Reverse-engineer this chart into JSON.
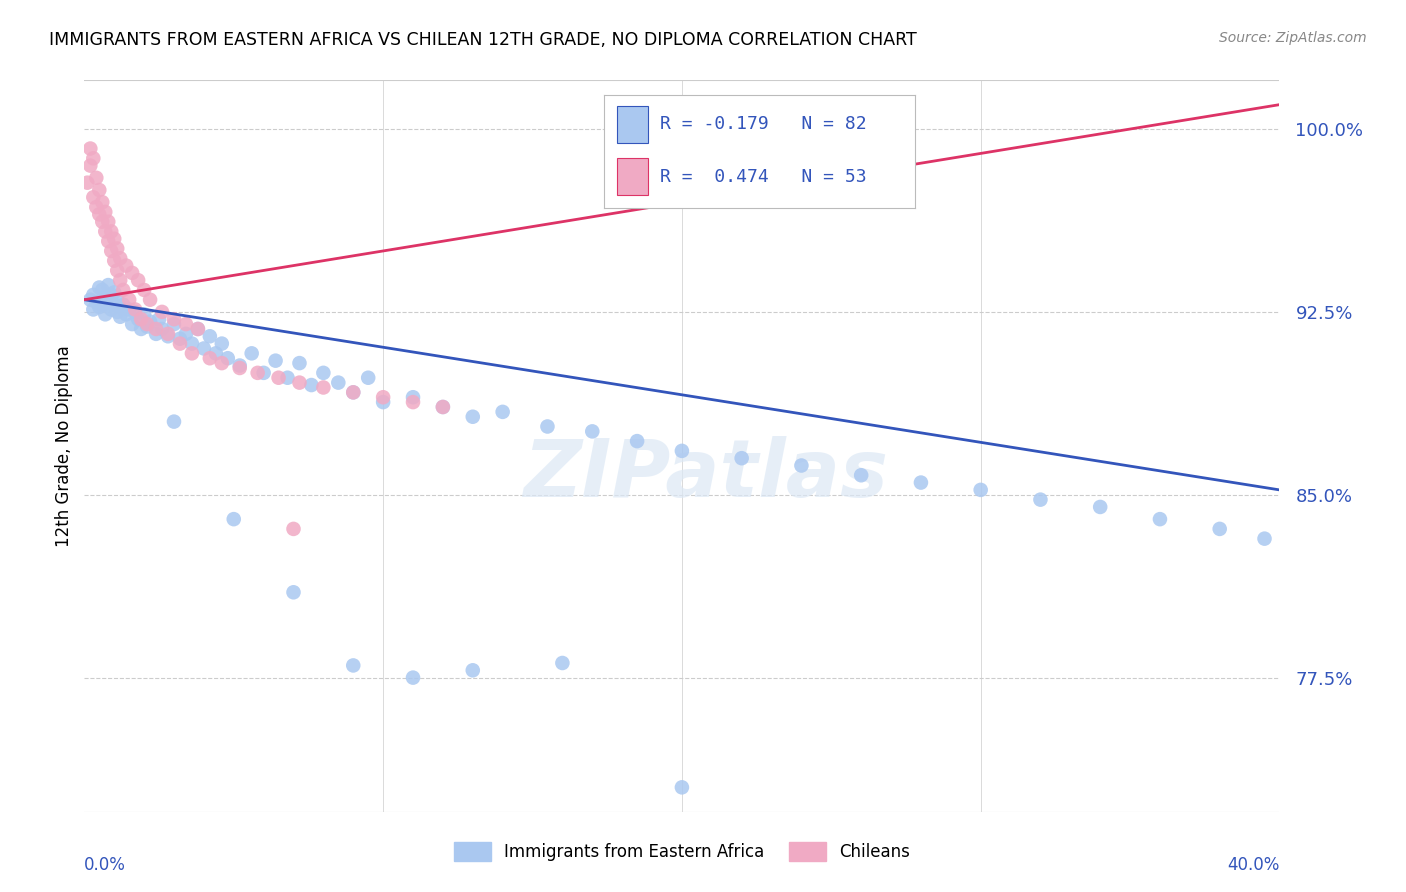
{
  "title": "IMMIGRANTS FROM EASTERN AFRICA VS CHILEAN 12TH GRADE, NO DIPLOMA CORRELATION CHART",
  "source": "Source: ZipAtlas.com",
  "ylabel": "12th Grade, No Diploma",
  "legend_blue": "Immigrants from Eastern Africa",
  "legend_pink": "Chileans",
  "R_blue": -0.179,
  "N_blue": 82,
  "R_pink": 0.474,
  "N_pink": 53,
  "watermark": "ZIPatlas",
  "blue_color": "#aac8f0",
  "pink_color": "#f0aac4",
  "blue_line_color": "#3355bb",
  "pink_line_color": "#dd3366",
  "xlim": [
    0.0,
    0.4
  ],
  "ylim": [
    0.72,
    1.02
  ],
  "ytick_vals": [
    0.775,
    0.85,
    0.925,
    1.0
  ],
  "ytick_labels": [
    "77.5%",
    "85.0%",
    "92.5%",
    "100.0%"
  ],
  "blue_line_x": [
    0.0,
    0.4
  ],
  "blue_line_y": [
    0.93,
    0.852
  ],
  "pink_line_x": [
    0.0,
    0.4
  ],
  "pink_line_y": [
    0.93,
    1.01
  ],
  "blue_scatter_x": [
    0.002,
    0.003,
    0.003,
    0.004,
    0.005,
    0.005,
    0.006,
    0.006,
    0.007,
    0.007,
    0.008,
    0.008,
    0.009,
    0.009,
    0.01,
    0.01,
    0.011,
    0.011,
    0.012,
    0.012,
    0.013,
    0.014,
    0.015,
    0.016,
    0.017,
    0.018,
    0.019,
    0.02,
    0.021,
    0.022,
    0.024,
    0.025,
    0.026,
    0.028,
    0.03,
    0.032,
    0.034,
    0.036,
    0.038,
    0.04,
    0.042,
    0.044,
    0.046,
    0.048,
    0.052,
    0.056,
    0.06,
    0.064,
    0.068,
    0.072,
    0.076,
    0.08,
    0.085,
    0.09,
    0.095,
    0.1,
    0.11,
    0.12,
    0.13,
    0.14,
    0.155,
    0.17,
    0.185,
    0.2,
    0.22,
    0.24,
    0.26,
    0.28,
    0.3,
    0.32,
    0.34,
    0.36,
    0.38,
    0.395,
    0.03,
    0.05,
    0.07,
    0.09,
    0.11,
    0.13,
    0.16,
    0.2
  ],
  "blue_scatter_y": [
    0.93,
    0.926,
    0.932,
    0.929,
    0.927,
    0.935,
    0.928,
    0.934,
    0.931,
    0.924,
    0.929,
    0.936,
    0.926,
    0.932,
    0.928,
    0.933,
    0.925,
    0.93,
    0.927,
    0.923,
    0.928,
    0.924,
    0.926,
    0.92,
    0.925,
    0.922,
    0.918,
    0.924,
    0.919,
    0.921,
    0.916,
    0.922,
    0.918,
    0.915,
    0.92,
    0.914,
    0.916,
    0.912,
    0.918,
    0.91,
    0.915,
    0.908,
    0.912,
    0.906,
    0.903,
    0.908,
    0.9,
    0.905,
    0.898,
    0.904,
    0.895,
    0.9,
    0.896,
    0.892,
    0.898,
    0.888,
    0.89,
    0.886,
    0.882,
    0.884,
    0.878,
    0.876,
    0.872,
    0.868,
    0.865,
    0.862,
    0.858,
    0.855,
    0.852,
    0.848,
    0.845,
    0.84,
    0.836,
    0.832,
    0.88,
    0.84,
    0.81,
    0.78,
    0.775,
    0.778,
    0.781,
    0.73
  ],
  "pink_scatter_x": [
    0.001,
    0.002,
    0.002,
    0.003,
    0.003,
    0.004,
    0.004,
    0.005,
    0.005,
    0.006,
    0.006,
    0.007,
    0.007,
    0.008,
    0.008,
    0.009,
    0.009,
    0.01,
    0.01,
    0.011,
    0.011,
    0.012,
    0.012,
    0.013,
    0.014,
    0.015,
    0.016,
    0.017,
    0.018,
    0.019,
    0.02,
    0.021,
    0.022,
    0.024,
    0.026,
    0.028,
    0.03,
    0.032,
    0.034,
    0.036,
    0.038,
    0.042,
    0.046,
    0.052,
    0.058,
    0.065,
    0.072,
    0.08,
    0.09,
    0.1,
    0.11,
    0.12,
    0.07
  ],
  "pink_scatter_y": [
    0.978,
    0.985,
    0.992,
    0.972,
    0.988,
    0.968,
    0.98,
    0.965,
    0.975,
    0.962,
    0.97,
    0.958,
    0.966,
    0.954,
    0.962,
    0.95,
    0.958,
    0.946,
    0.955,
    0.942,
    0.951,
    0.938,
    0.947,
    0.934,
    0.944,
    0.93,
    0.941,
    0.926,
    0.938,
    0.922,
    0.934,
    0.92,
    0.93,
    0.918,
    0.925,
    0.916,
    0.922,
    0.912,
    0.92,
    0.908,
    0.918,
    0.906,
    0.904,
    0.902,
    0.9,
    0.898,
    0.896,
    0.894,
    0.892,
    0.89,
    0.888,
    0.886,
    0.836
  ]
}
